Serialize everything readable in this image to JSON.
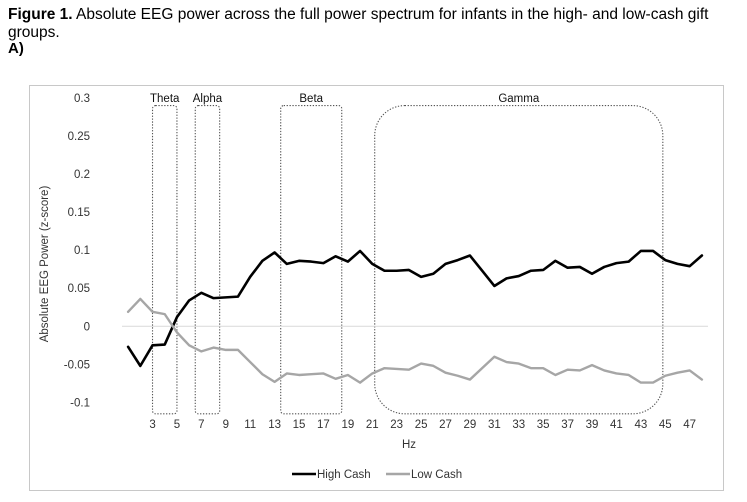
{
  "caption": {
    "label": "Figure 1.",
    "text": " Absolute EEG power across the full power spectrum for infants in the high- and low-cash gift groups."
  },
  "panel_label": "A)",
  "chart_data": {
    "type": "line",
    "x": [
      1,
      2,
      3,
      4,
      5,
      6,
      7,
      8,
      9,
      10,
      11,
      12,
      13,
      14,
      15,
      16,
      17,
      18,
      19,
      20,
      21,
      22,
      23,
      24,
      25,
      26,
      27,
      28,
      29,
      30,
      31,
      32,
      33,
      34,
      35,
      36,
      37,
      38,
      39,
      40,
      41,
      42,
      43,
      44,
      45,
      46,
      47,
      48
    ],
    "x_tick_labels": [
      "3",
      "5",
      "7",
      "9",
      "11",
      "13",
      "15",
      "17",
      "19",
      "21",
      "23",
      "25",
      "27",
      "29",
      "31",
      "33",
      "35",
      "37",
      "39",
      "41",
      "43",
      "45",
      "47"
    ],
    "x_tick_values": [
      3,
      5,
      7,
      9,
      11,
      13,
      15,
      17,
      19,
      21,
      23,
      25,
      27,
      29,
      31,
      33,
      35,
      37,
      39,
      41,
      43,
      45,
      47
    ],
    "series": [
      {
        "name": "High Cash",
        "color": "#000000",
        "values": [
          -0.027,
          -0.052,
          -0.025,
          -0.024,
          0.012,
          0.034,
          0.044,
          0.037,
          0.038,
          0.039,
          0.065,
          0.086,
          0.097,
          0.082,
          0.086,
          0.085,
          0.083,
          0.092,
          0.085,
          0.099,
          0.082,
          0.073,
          0.073,
          0.074,
          0.065,
          0.069,
          0.082,
          0.087,
          0.093,
          0.073,
          0.053,
          0.063,
          0.066,
          0.073,
          0.074,
          0.086,
          0.077,
          0.078,
          0.069,
          0.078,
          0.083,
          0.085,
          0.099,
          0.099,
          0.087,
          0.082,
          0.079,
          0.093
        ]
      },
      {
        "name": "Low Cash",
        "color": "#a6a6a6",
        "values": [
          0.019,
          0.036,
          0.019,
          0.016,
          -0.008,
          -0.025,
          -0.033,
          -0.028,
          -0.031,
          -0.031,
          -0.047,
          -0.063,
          -0.073,
          -0.062,
          -0.064,
          -0.063,
          -0.062,
          -0.069,
          -0.064,
          -0.074,
          -0.062,
          -0.055,
          -0.056,
          -0.057,
          -0.049,
          -0.052,
          -0.061,
          -0.065,
          -0.07,
          -0.055,
          -0.04,
          -0.047,
          -0.049,
          -0.055,
          -0.055,
          -0.064,
          -0.057,
          -0.058,
          -0.051,
          -0.058,
          -0.062,
          -0.064,
          -0.074,
          -0.074,
          -0.065,
          -0.061,
          -0.058,
          -0.07
        ]
      }
    ],
    "y_ticks": [
      -0.1,
      -0.05,
      0,
      0.05,
      0.1,
      0.15,
      0.2,
      0.25,
      0.3
    ],
    "y_tick_labels": [
      "-0.1",
      "-0.05",
      "0",
      "0.05",
      "0.1",
      "0.15",
      "0.2",
      "0.25",
      "0.3"
    ],
    "ylim": [
      -0.11,
      0.3
    ],
    "xlim": [
      0.5,
      48.5
    ],
    "xlabel": "Hz",
    "ylabel": "Absolute EEG Power (z-score)",
    "bands": [
      {
        "name": "Theta",
        "from": 3,
        "to": 5
      },
      {
        "name": "Alpha",
        "from": 6.5,
        "to": 8.5
      },
      {
        "name": "Beta",
        "from": 13.5,
        "to": 18.5
      },
      {
        "name": "Gamma",
        "from": 21.2,
        "to": 44.8
      }
    ],
    "legend_position": "bottom",
    "grid": false
  }
}
